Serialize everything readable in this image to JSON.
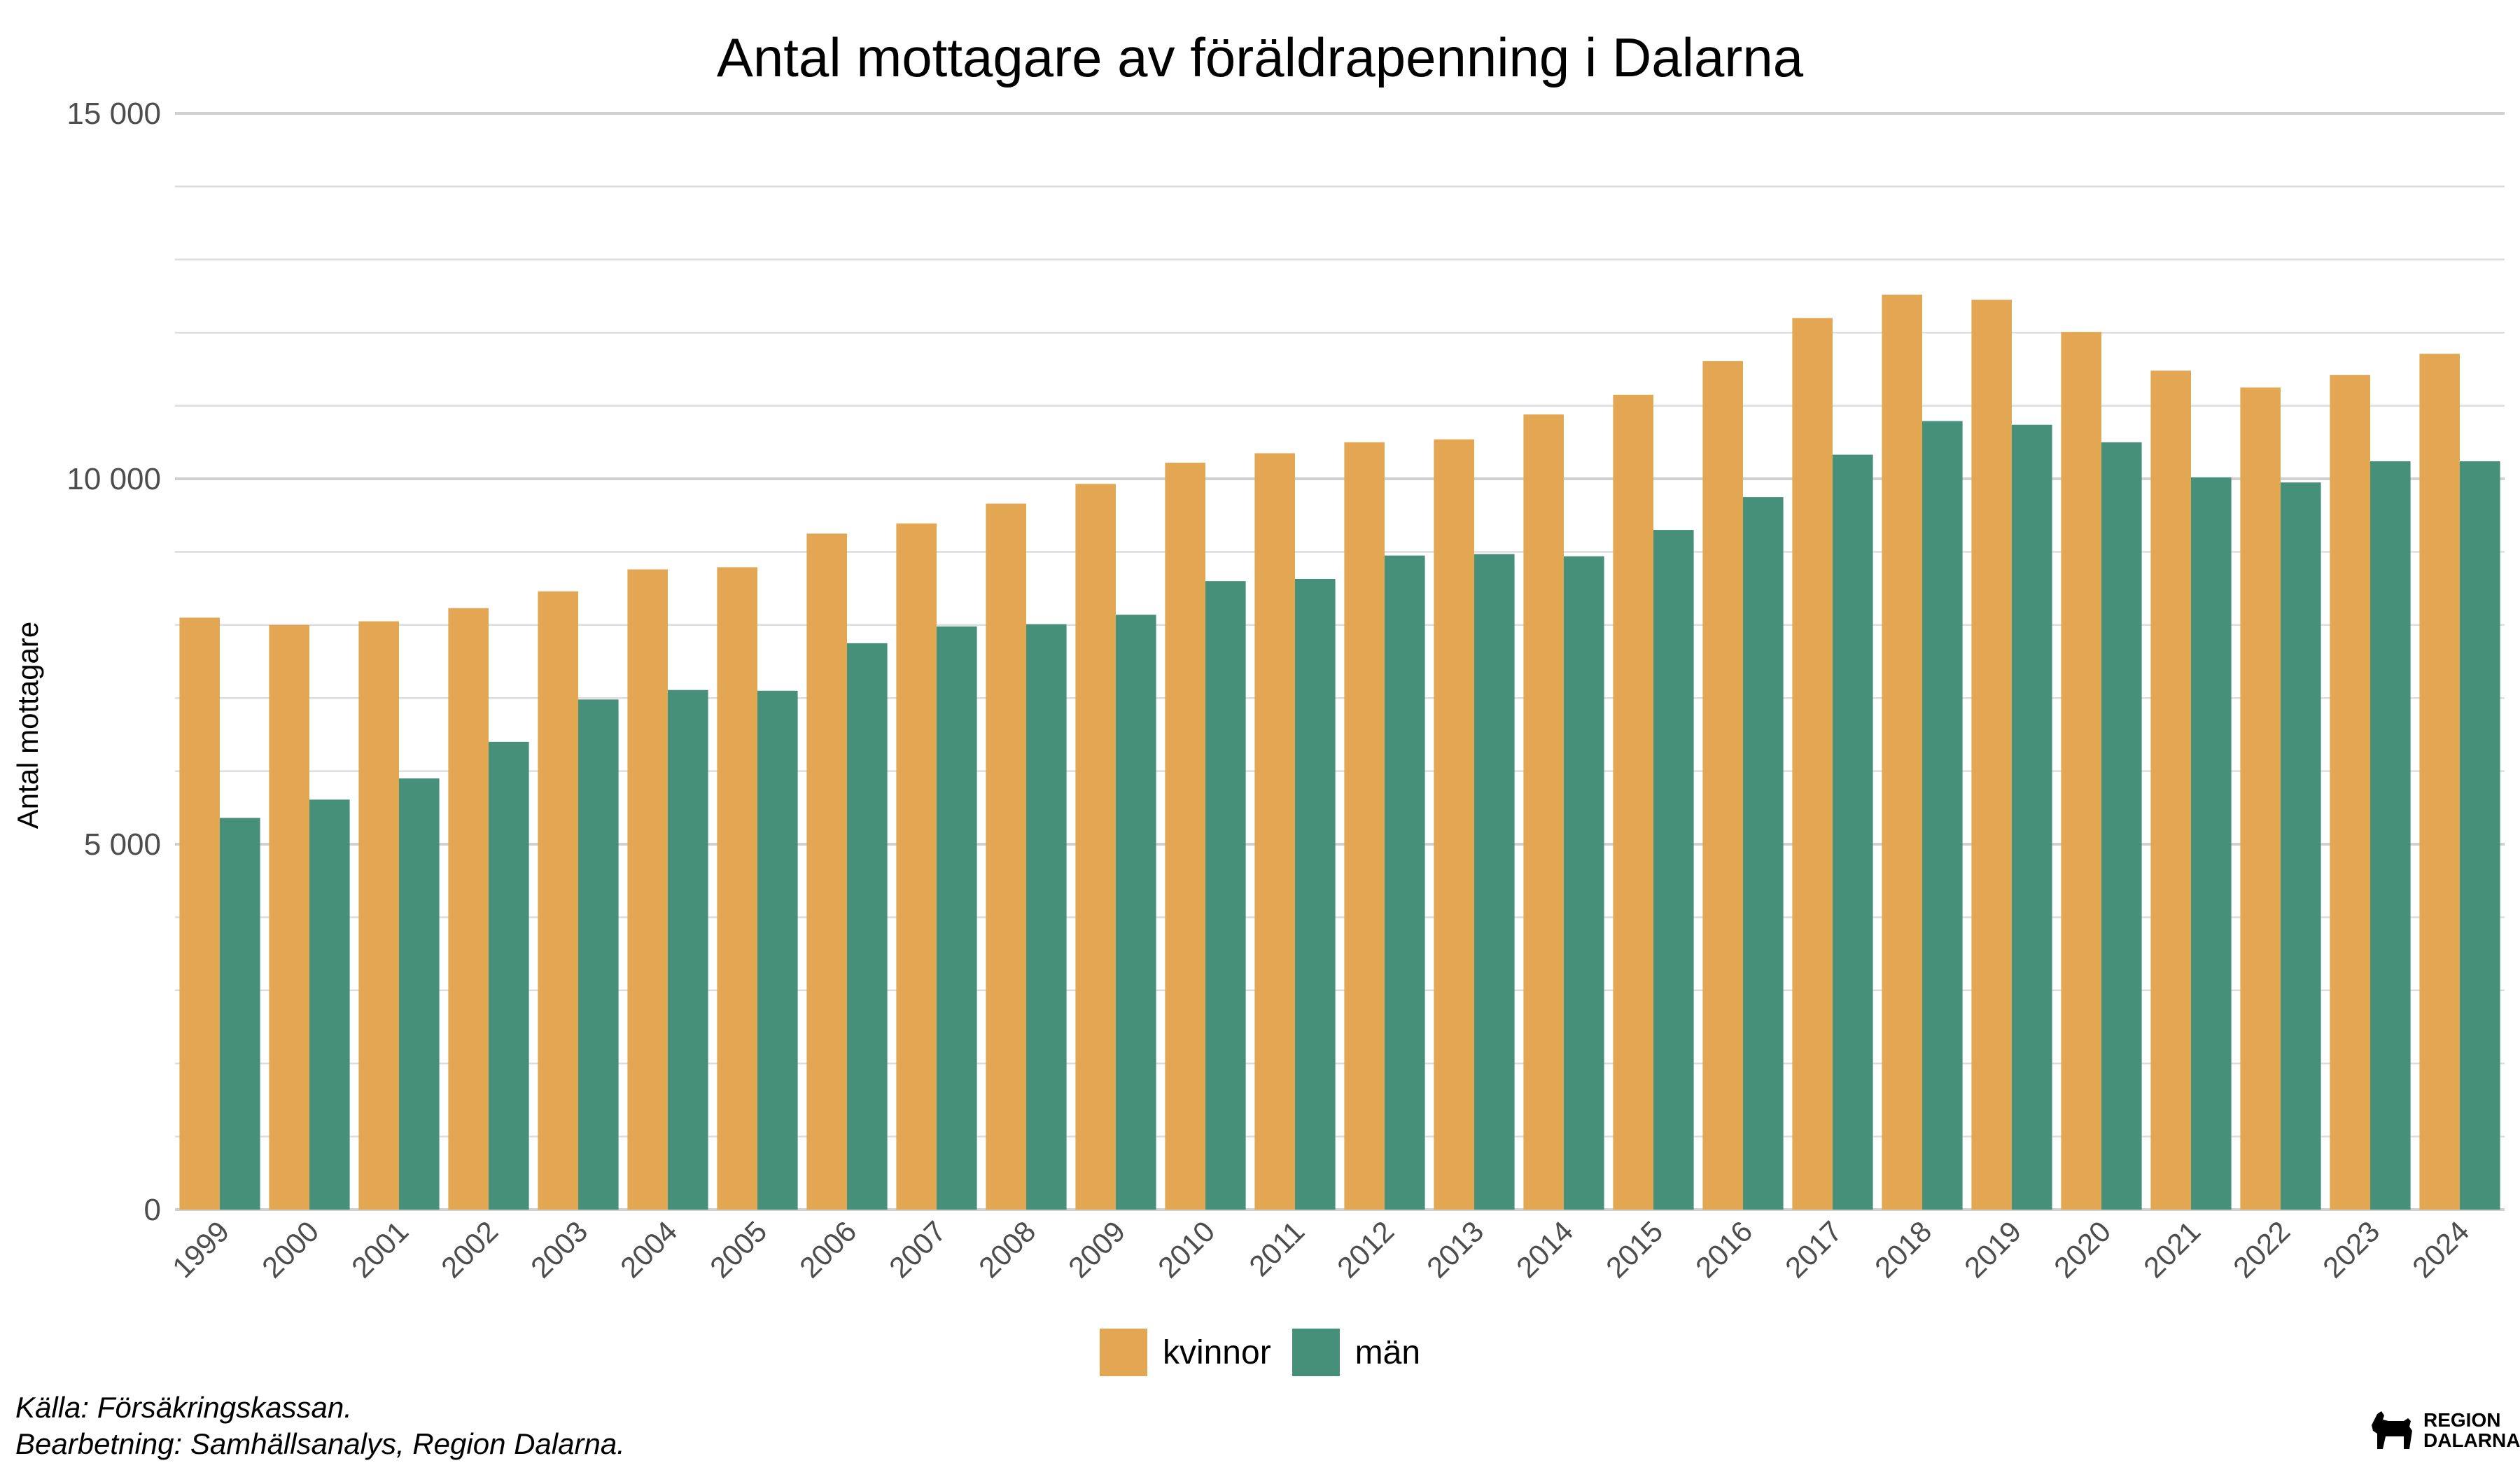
{
  "chart_data": {
    "type": "bar",
    "title": "Antal mottagare av föräldrapenning i Dalarna",
    "xlabel": "",
    "ylabel": "Antal mottagare",
    "ylim": [
      0,
      15000
    ],
    "yticks": [
      0,
      5000,
      10000,
      15000
    ],
    "ytick_labels": [
      "0",
      "5 000",
      "10 000",
      "15 000"
    ],
    "grid": true,
    "legend_position": "bottom",
    "categories": [
      "1999",
      "2000",
      "2001",
      "2002",
      "2003",
      "2004",
      "2005",
      "2006",
      "2007",
      "2008",
      "2009",
      "2010",
      "2011",
      "2012",
      "2013",
      "2014",
      "2015",
      "2016",
      "2017",
      "2018",
      "2019",
      "2020",
      "2021",
      "2022",
      "2023",
      "2024"
    ],
    "series": [
      {
        "name": "kvinnor",
        "color": "#E3A653",
        "values": [
          8100,
          8000,
          8050,
          8230,
          8460,
          8760,
          8790,
          9250,
          9390,
          9660,
          9930,
          10220,
          10350,
          10500,
          10540,
          10880,
          11150,
          11610,
          12200,
          12520,
          12450,
          12010,
          11480,
          11250,
          11420,
          11710
        ]
      },
      {
        "name": "män",
        "color": "#46907A",
        "values": [
          5360,
          5610,
          5900,
          6400,
          6980,
          7110,
          7100,
          7750,
          7980,
          8010,
          8140,
          8600,
          8630,
          8950,
          8970,
          8940,
          9300,
          9750,
          10330,
          10790,
          10740,
          10500,
          10020,
          9950,
          10240,
          10240
        ]
      }
    ]
  },
  "caption": {
    "line1": "Källa: Försäkringskassan.",
    "line2": "Bearbetning: Samhällsanalys, Region Dalarna."
  },
  "logo": {
    "line1": "REGION",
    "line2": "DALARNA",
    "icon": "dala-horse-icon"
  }
}
